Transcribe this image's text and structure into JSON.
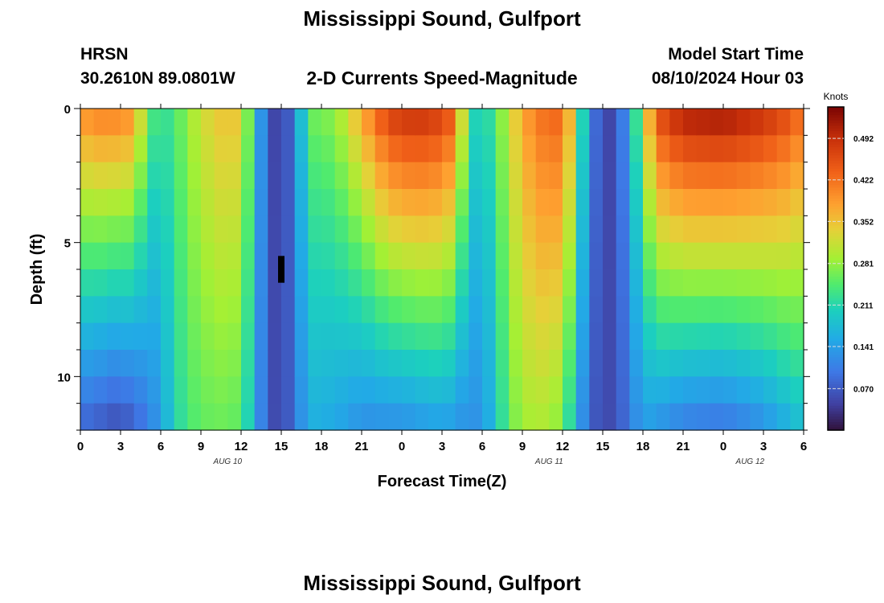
{
  "chart_data": {
    "type": "heatmap",
    "title": "Mississippi Sound, Gulfport",
    "subtitle": "2-D Currents Speed-Magnitude",
    "station": {
      "id": "HRSN",
      "coords": "30.2610N  89.0801W"
    },
    "model": {
      "label": "Model Start Time",
      "value": "08/10/2024 Hour 03"
    },
    "xlabel": "Forecast Time(Z)",
    "ylabel": "Depth (ft)",
    "xlim": [
      0,
      54
    ],
    "ylim": [
      0,
      12
    ],
    "x_tick_labels": [
      "0",
      "3",
      "6",
      "9",
      "12",
      "15",
      "18",
      "21",
      "0",
      "3",
      "6",
      "9",
      "12",
      "15",
      "18",
      "21",
      "0",
      "3",
      "6"
    ],
    "y_tick_labels": [
      "0",
      "5",
      "10"
    ],
    "y_ticks": [
      0,
      5,
      10
    ],
    "date_labels": [
      {
        "hour": 11,
        "label": "AUG 10"
      },
      {
        "hour": 35,
        "label": "AUG 11"
      },
      {
        "hour": 50,
        "label": "AUG 12"
      }
    ],
    "colorbar": {
      "label": "Knots",
      "min": 0.0,
      "max": 0.545,
      "ticks": [
        "0.070",
        "0.141",
        "0.211",
        "0.281",
        "0.352",
        "0.422",
        "0.492"
      ],
      "tick_values": [
        0.07,
        0.141,
        0.211,
        0.281,
        0.352,
        0.422,
        0.492
      ]
    },
    "grid": {
      "hours_per_column": 1,
      "depth_layers": 12
    },
    "flood_surface": [
      {
        "t": 0,
        "s": 0.4
      },
      {
        "t": 2,
        "s": 0.42
      },
      {
        "t": 4,
        "s": 0.4
      },
      {
        "t": 5,
        "s": 0.26
      },
      {
        "t": 6,
        "s": 0.22
      },
      {
        "t": 7,
        "s": 0.24
      },
      {
        "t": 8,
        "s": 0.28
      },
      {
        "t": 9,
        "s": 0.32
      },
      {
        "t": 11,
        "s": 0.36
      },
      {
        "t": 12,
        "s": 0.34
      },
      {
        "t": 13,
        "s": 0.2
      },
      {
        "t": 14,
        "s": 0.06
      },
      {
        "t": 15,
        "s": 0.04
      },
      {
        "t": 16,
        "s": 0.1
      },
      {
        "t": 17,
        "s": 0.26
      },
      {
        "t": 19,
        "s": 0.28
      },
      {
        "t": 21,
        "s": 0.38
      },
      {
        "t": 23,
        "s": 0.48
      },
      {
        "t": 25,
        "s": 0.5
      },
      {
        "t": 27,
        "s": 0.48
      },
      {
        "t": 28,
        "s": 0.44
      },
      {
        "t": 29,
        "s": 0.22
      },
      {
        "t": 30,
        "s": 0.2
      },
      {
        "t": 31,
        "s": 0.24
      },
      {
        "t": 32,
        "s": 0.32
      },
      {
        "t": 34,
        "s": 0.42
      },
      {
        "t": 36,
        "s": 0.44
      },
      {
        "t": 37,
        "s": 0.3
      },
      {
        "t": 38,
        "s": 0.12
      },
      {
        "t": 39,
        "s": 0.05
      },
      {
        "t": 40,
        "s": 0.05
      },
      {
        "t": 41,
        "s": 0.16
      },
      {
        "t": 42,
        "s": 0.3
      },
      {
        "t": 43,
        "s": 0.46
      },
      {
        "t": 45,
        "s": 0.52
      },
      {
        "t": 48,
        "s": 0.53
      },
      {
        "t": 51,
        "s": 0.5
      },
      {
        "t": 53,
        "s": 0.46
      },
      {
        "t": 54,
        "s": 0.42
      }
    ],
    "bottom_current": [
      {
        "t": 0,
        "s": 0.08
      },
      {
        "t": 3,
        "s": 0.05
      },
      {
        "t": 5,
        "s": 0.1
      },
      {
        "t": 6,
        "s": 0.14
      },
      {
        "t": 7,
        "s": 0.2
      },
      {
        "t": 8,
        "s": 0.24
      },
      {
        "t": 10,
        "s": 0.26
      },
      {
        "t": 12,
        "s": 0.25
      },
      {
        "t": 13,
        "s": 0.16
      },
      {
        "t": 14,
        "s": 0.06
      },
      {
        "t": 15,
        "s": 0.05
      },
      {
        "t": 16,
        "s": 0.09
      },
      {
        "t": 17,
        "s": 0.16
      },
      {
        "t": 19,
        "s": 0.15
      },
      {
        "t": 21,
        "s": 0.12
      },
      {
        "t": 24,
        "s": 0.12
      },
      {
        "t": 27,
        "s": 0.14
      },
      {
        "t": 29,
        "s": 0.12
      },
      {
        "t": 30,
        "s": 0.13
      },
      {
        "t": 31,
        "s": 0.18
      },
      {
        "t": 32,
        "s": 0.26
      },
      {
        "t": 34,
        "s": 0.3
      },
      {
        "t": 36,
        "s": 0.27
      },
      {
        "t": 37,
        "s": 0.16
      },
      {
        "t": 38,
        "s": 0.08
      },
      {
        "t": 39,
        "s": 0.05
      },
      {
        "t": 40,
        "s": 0.06
      },
      {
        "t": 41,
        "s": 0.1
      },
      {
        "t": 42,
        "s": 0.14
      },
      {
        "t": 45,
        "s": 0.1
      },
      {
        "t": 48,
        "s": 0.09
      },
      {
        "t": 51,
        "s": 0.12
      },
      {
        "t": 53,
        "s": 0.16
      },
      {
        "t": 54,
        "s": 0.18
      }
    ],
    "missing_cells": [
      {
        "t": 15,
        "depth_from": 5.5,
        "depth_to": 6.5
      }
    ]
  },
  "footer_title": "Mississippi Sound, Gulfport"
}
